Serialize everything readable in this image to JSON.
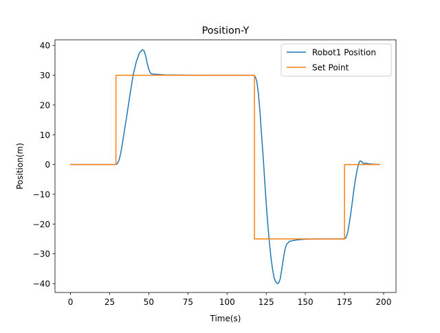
{
  "chart_data": {
    "type": "line",
    "title": "Position-Y",
    "xlabel": "Time(s)",
    "ylabel": "Position(m)",
    "xlim": [
      -9.9,
      207.9
    ],
    "ylim": [
      -43.0,
      41.9
    ],
    "xticks": [
      0,
      25,
      50,
      75,
      100,
      125,
      150,
      175,
      200
    ],
    "xtick_labels": [
      "0",
      "25",
      "50",
      "75",
      "100",
      "125",
      "150",
      "175",
      "200"
    ],
    "yticks": [
      40,
      30,
      20,
      10,
      0,
      -10,
      -20,
      -30,
      -40
    ],
    "ytick_labels": [
      "40",
      "30",
      "20",
      "10",
      "0",
      "−10",
      "−20",
      "−30",
      "−40"
    ],
    "grid": false,
    "legend_position": "upper right",
    "series": [
      {
        "name": "Robot1 Position",
        "color": "#1f77b4",
        "points": [
          [
            0,
            0
          ],
          [
            29,
            0
          ],
          [
            30,
            0.4
          ],
          [
            31,
            1.5
          ],
          [
            32,
            3.5
          ],
          [
            33,
            6.5
          ],
          [
            34,
            10
          ],
          [
            36,
            16.5
          ],
          [
            38,
            23.5
          ],
          [
            40,
            30
          ],
          [
            42,
            34.5
          ],
          [
            44,
            37.5
          ],
          [
            46,
            38.6
          ],
          [
            47,
            38.2
          ],
          [
            48,
            36.5
          ],
          [
            49,
            34
          ],
          [
            50,
            32
          ],
          [
            51,
            30.8
          ],
          [
            52,
            30.4
          ],
          [
            55,
            30.3
          ],
          [
            60,
            30.1
          ],
          [
            80,
            30
          ],
          [
            100,
            30
          ],
          [
            115,
            30
          ],
          [
            117,
            30
          ],
          [
            118,
            29.5
          ],
          [
            119,
            28
          ],
          [
            120,
            24
          ],
          [
            121,
            18
          ],
          [
            122,
            10
          ],
          [
            123,
            3
          ],
          [
            124,
            -5
          ],
          [
            125,
            -13
          ],
          [
            126,
            -20
          ],
          [
            127,
            -26
          ],
          [
            128,
            -31
          ],
          [
            129,
            -35
          ],
          [
            130,
            -38
          ],
          [
            131,
            -39.4
          ],
          [
            132,
            -40
          ],
          [
            133,
            -39.8
          ],
          [
            134,
            -38.3
          ],
          [
            135,
            -35
          ],
          [
            136,
            -31.5
          ],
          [
            137,
            -28.5
          ],
          [
            138,
            -26.8
          ],
          [
            140,
            -25.8
          ],
          [
            145,
            -25.3
          ],
          [
            150,
            -25.1
          ],
          [
            160,
            -25
          ],
          [
            172,
            -25
          ],
          [
            175,
            -25
          ],
          [
            176,
            -24.5
          ],
          [
            177,
            -23
          ],
          [
            178,
            -20
          ],
          [
            179,
            -16.5
          ],
          [
            180,
            -12.5
          ],
          [
            181,
            -8.5
          ],
          [
            182,
            -5
          ],
          [
            183,
            -2
          ],
          [
            184,
            0.3
          ],
          [
            185,
            1.2
          ],
          [
            186,
            1
          ],
          [
            187,
            0.4
          ],
          [
            189,
            0.4
          ],
          [
            191,
            0.2
          ],
          [
            194,
            0.1
          ],
          [
            197,
            0
          ]
        ]
      },
      {
        "name": "Set Point",
        "color": "#ff7f0e",
        "points": [
          [
            0,
            0
          ],
          [
            29,
            0
          ],
          [
            29,
            30
          ],
          [
            117.5,
            30
          ],
          [
            117.5,
            -25
          ],
          [
            175,
            -25
          ],
          [
            175,
            0
          ],
          [
            197.5,
            0
          ]
        ]
      }
    ]
  }
}
